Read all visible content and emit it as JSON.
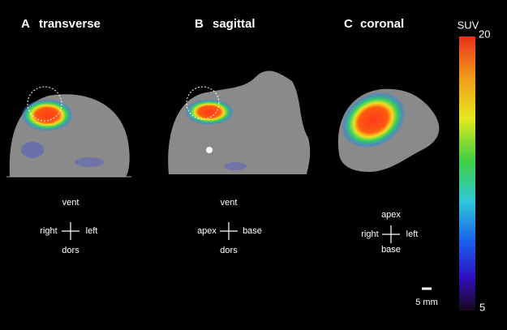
{
  "panels": [
    {
      "letter": "A",
      "label": "transverse",
      "top": "vent",
      "left": "right",
      "right": "left",
      "bottom": "dors"
    },
    {
      "letter": "B",
      "label": "sagittal",
      "top": "vent",
      "left": "apex",
      "right": "base",
      "bottom": "dors"
    },
    {
      "letter": "C",
      "label": "coronal",
      "top": "apex",
      "left": "right",
      "right": "left",
      "bottom": "base"
    }
  ],
  "colorbar": {
    "label": "SUV",
    "max": 20,
    "min": 5
  },
  "scale_bar": "5 mm"
}
